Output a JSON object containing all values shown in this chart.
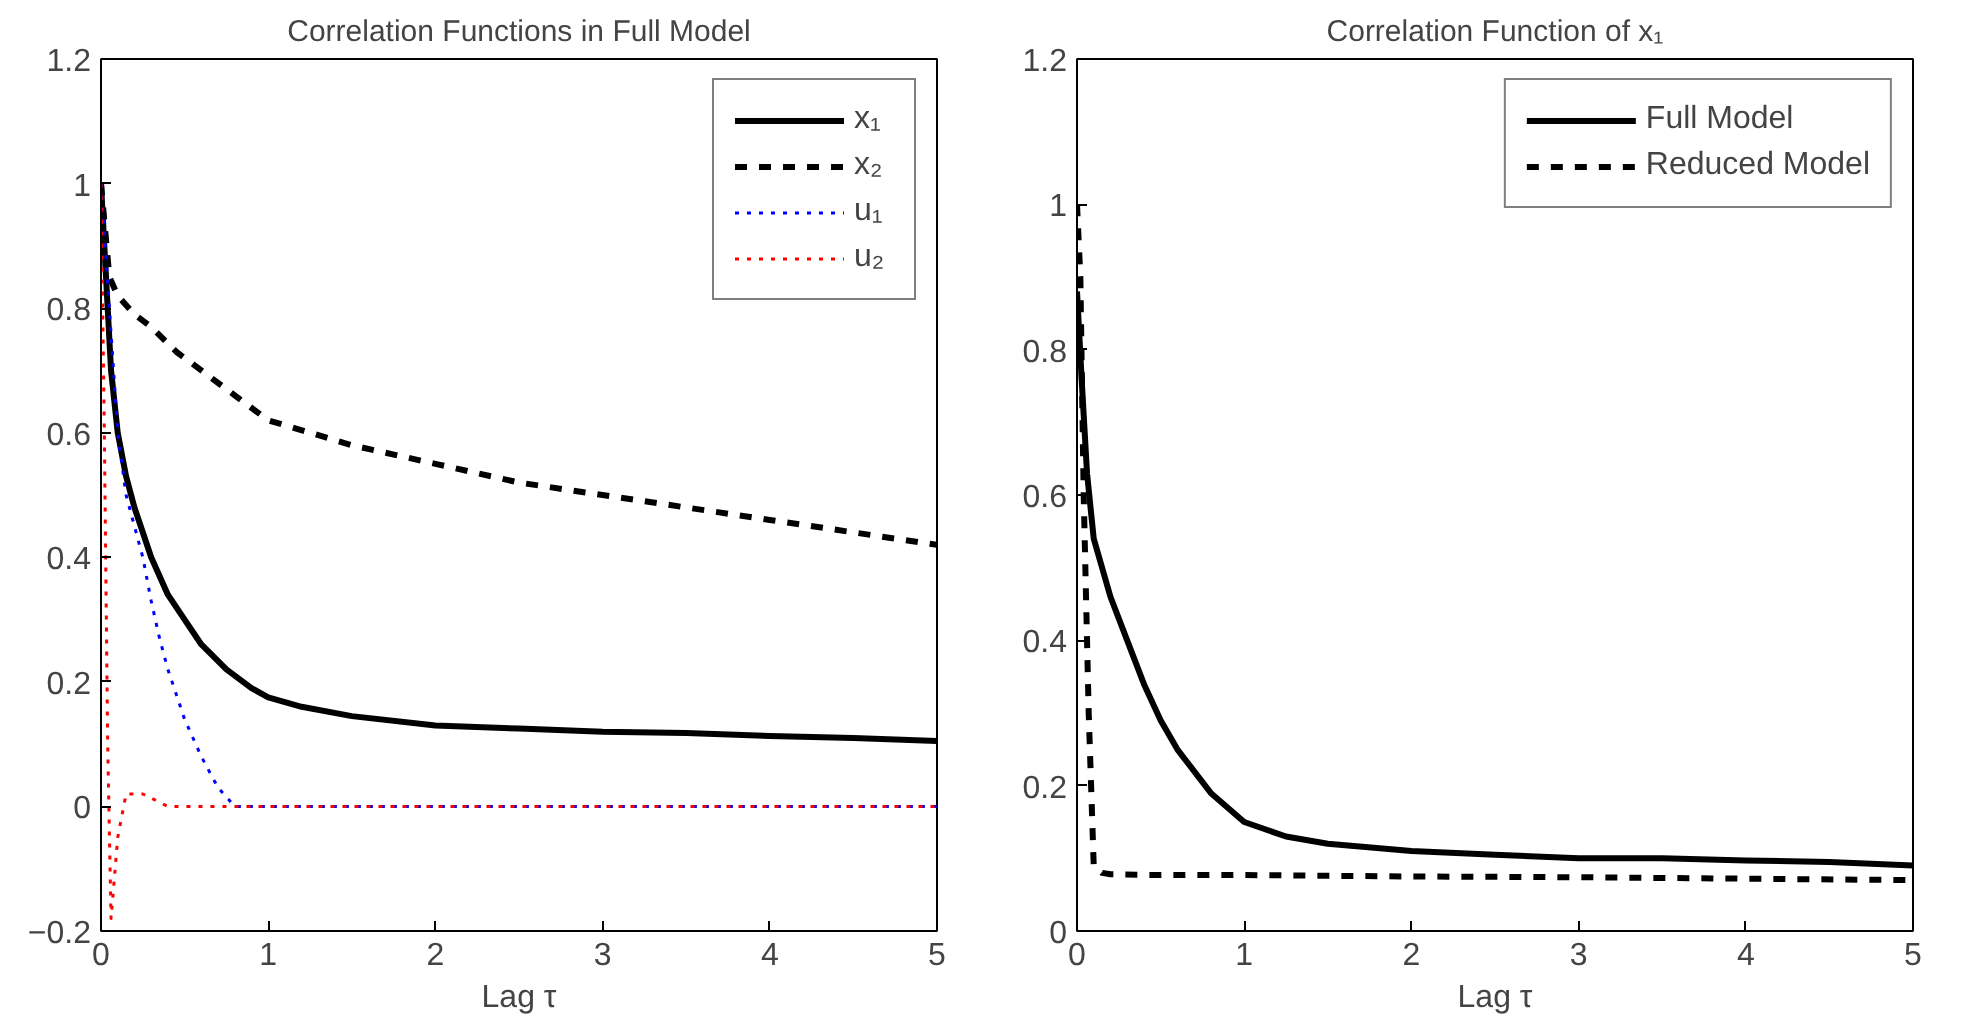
{
  "chart_data": [
    {
      "type": "line",
      "title": "Correlation Functions in Full Model",
      "xlabel": "Lag τ",
      "xlim": [
        0,
        5
      ],
      "ylim": [
        -0.2,
        1.2
      ],
      "xticks": [
        0,
        1,
        2,
        3,
        4,
        5
      ],
      "yticks": [
        -0.2,
        0,
        0.2,
        0.4,
        0.6,
        0.8,
        1,
        1.2
      ],
      "grid": false,
      "legend": "top right",
      "series": [
        {
          "name": "x₁",
          "color": "#000000",
          "line_style": "solid",
          "x": [
            0,
            0.03,
            0.06,
            0.1,
            0.15,
            0.2,
            0.3,
            0.4,
            0.5,
            0.6,
            0.75,
            0.9,
            1.0,
            1.2,
            1.5,
            2,
            2.5,
            3,
            3.5,
            4,
            4.5,
            5
          ],
          "values": [
            1,
            0.85,
            0.7,
            0.6,
            0.53,
            0.48,
            0.4,
            0.34,
            0.3,
            0.26,
            0.22,
            0.19,
            0.175,
            0.16,
            0.145,
            0.13,
            0.125,
            0.12,
            0.118,
            0.113,
            0.11,
            0.105
          ]
        },
        {
          "name": "x₂",
          "color": "#000000",
          "line_style": "dashed",
          "x": [
            0,
            0.05,
            0.1,
            0.2,
            0.3,
            0.45,
            0.6,
            0.8,
            1,
            1.25,
            1.5,
            2,
            2.5,
            3,
            3.5,
            4,
            4.5,
            5
          ],
          "values": [
            1,
            0.85,
            0.82,
            0.79,
            0.77,
            0.73,
            0.7,
            0.66,
            0.62,
            0.6,
            0.58,
            0.55,
            0.52,
            0.5,
            0.48,
            0.46,
            0.44,
            0.42
          ]
        },
        {
          "name": "u₁",
          "color": "#0000ff",
          "line_style": "dotted",
          "x": [
            0,
            0.05,
            0.1,
            0.15,
            0.2,
            0.25,
            0.3,
            0.35,
            0.4,
            0.45,
            0.5,
            0.6,
            0.7,
            0.8,
            1,
            2,
            3,
            4,
            5
          ],
          "values": [
            1,
            0.8,
            0.6,
            0.5,
            0.45,
            0.4,
            0.33,
            0.27,
            0.22,
            0.18,
            0.14,
            0.08,
            0.03,
            0.0,
            0,
            0,
            0,
            0,
            0
          ]
        },
        {
          "name": "u₂",
          "color": "#ff0000",
          "line_style": "dotted",
          "x": [
            0,
            0.02,
            0.04,
            0.06,
            0.1,
            0.15,
            0.25,
            0.4,
            0.6,
            1,
            2,
            3,
            4,
            5
          ],
          "values": [
            1,
            0.6,
            0.1,
            -0.18,
            -0.05,
            0.02,
            0.02,
            0.0,
            0,
            0,
            0,
            0,
            0,
            0
          ]
        }
      ]
    },
    {
      "type": "line",
      "title": "Correlation Function of x₁",
      "xlabel": "Lag τ",
      "xlim": [
        0,
        5
      ],
      "ylim": [
        0,
        1.2
      ],
      "xticks": [
        0,
        1,
        2,
        3,
        4,
        5
      ],
      "yticks": [
        0,
        0.2,
        0.4,
        0.6,
        0.8,
        1,
        1.2
      ],
      "grid": false,
      "legend": "top right",
      "series": [
        {
          "name": "Full Model",
          "color": "#000000",
          "line_style": "solid",
          "x": [
            0,
            0.03,
            0.06,
            0.1,
            0.2,
            0.3,
            0.4,
            0.5,
            0.6,
            0.8,
            1,
            1.25,
            1.5,
            2,
            2.5,
            3,
            3.5,
            4,
            4.5,
            5
          ],
          "values": [
            0.88,
            0.75,
            0.63,
            0.54,
            0.46,
            0.4,
            0.34,
            0.29,
            0.25,
            0.19,
            0.15,
            0.13,
            0.12,
            0.11,
            0.105,
            0.1,
            0.1,
            0.097,
            0.095,
            0.09
          ]
        },
        {
          "name": "Reduced Model",
          "color": "#000000",
          "line_style": "dashed",
          "x": [
            0,
            0.02,
            0.04,
            0.07,
            0.1,
            0.15,
            0.2,
            0.5,
            1,
            2,
            3,
            4,
            5
          ],
          "values": [
            1,
            0.9,
            0.6,
            0.3,
            0.09,
            0.08,
            0.078,
            0.077,
            0.077,
            0.075,
            0.074,
            0.072,
            0.07
          ]
        }
      ]
    }
  ]
}
